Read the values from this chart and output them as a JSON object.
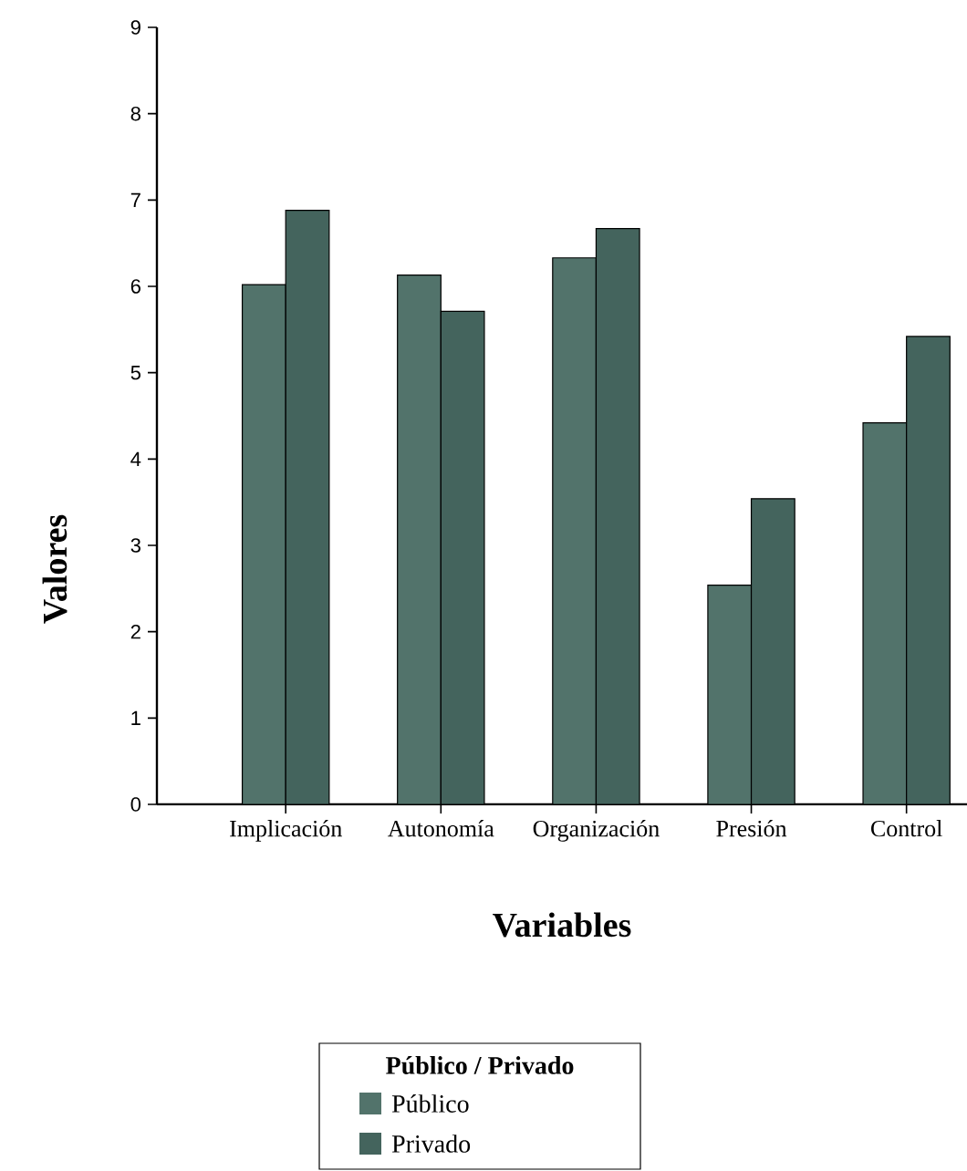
{
  "chart_data": {
    "type": "bar",
    "xlabel": "Variables",
    "ylabel": "Valores",
    "legend_title": "Público / Privado",
    "categories": [
      "Implicación",
      "Autonomía",
      "Organización",
      "Presión",
      "Control"
    ],
    "series": [
      {
        "name": "Público",
        "color": "#52736b",
        "values": [
          6.02,
          6.13,
          6.33,
          2.54,
          4.42
        ]
      },
      {
        "name": "Privado",
        "color": "#44645d",
        "values": [
          6.88,
          5.71,
          6.67,
          3.54,
          5.42
        ]
      }
    ],
    "ylim": [
      0,
      9
    ],
    "yticks": [
      0,
      1,
      2,
      3,
      4,
      5,
      6,
      7,
      8,
      9
    ],
    "legend": "bottom"
  }
}
